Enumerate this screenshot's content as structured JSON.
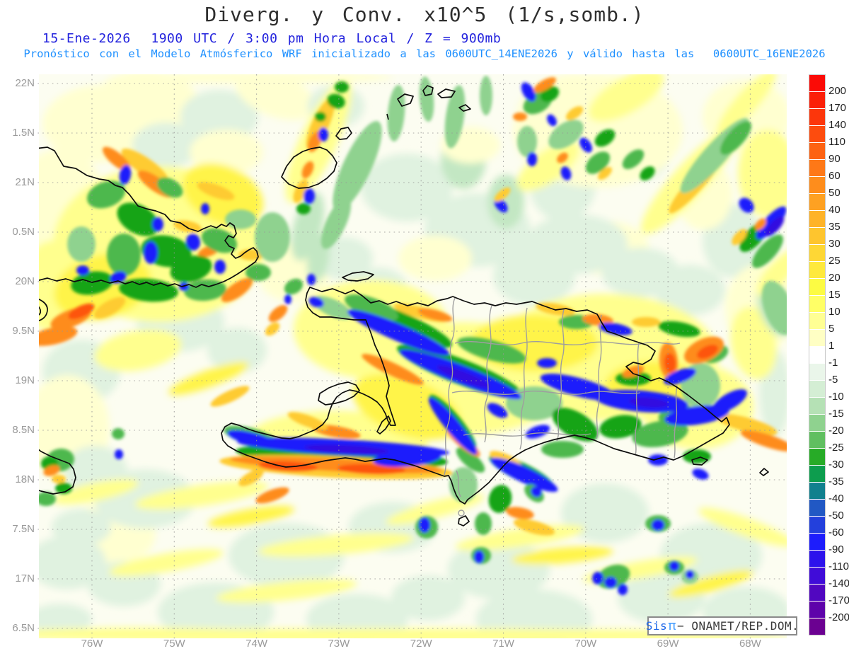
{
  "header": {
    "title": "Diverg. y Conv. x10^5 (1/s,somb.)",
    "datetime_line": "15-Ene-2026  1900 UTC / 3:00 pm Hora Local / Z = 900mb",
    "model_line": "Pronóstico con el Modelo Atmósferico WRF inicializado a las 0600UTC_14ENE2026 y válido hasta las  0600UTC_16ENE2026"
  },
  "map": {
    "y_axis_labels": [
      "22N",
      "1.5N",
      "21N",
      "0.5N",
      "20N",
      "9.5N",
      "19N",
      "8.5N",
      "18N",
      "7.5N",
      "17N",
      "6.5N"
    ],
    "x_axis_labels": [
      "76W",
      "75W",
      "74W",
      "73W",
      "72W",
      "71W",
      "70W",
      "69W",
      "68W"
    ]
  },
  "colorbar": {
    "levels": [
      200,
      170,
      140,
      110,
      90,
      60,
      50,
      40,
      35,
      30,
      25,
      20,
      15,
      10,
      5,
      1,
      -1,
      -5,
      -10,
      -15,
      -20,
      -25,
      -30,
      -35,
      -40,
      -50,
      -60,
      -90,
      -110,
      -140,
      -170,
      -200
    ],
    "colors": [
      "#fb0b06",
      "#fb1f08",
      "#fc360b",
      "#fd4c0e",
      "#fd6212",
      "#fe7817",
      "#fe8d1c",
      "#fea122",
      "#feb328",
      "#fec52e",
      "#fed735",
      "#fee93c",
      "#fcfb43",
      "#ffff66",
      "#ffff94",
      "#ffffc4",
      "#ffffff",
      "#eaf6ea",
      "#d4eed4",
      "#b5e1b5",
      "#8fd28f",
      "#60bf60",
      "#27ab27",
      "#0d9d4e",
      "#11808e",
      "#2158c4",
      "#2340dc",
      "#1d1dfc",
      "#2d13ec",
      "#400cd8",
      "#5107c0",
      "#5e03aa",
      "#6b0191"
    ]
  },
  "watermark": {
    "prefix": "Sis",
    "pi": "π",
    "suffix": "− ONAMET/REP.DOM."
  },
  "colors": {
    "title_text": "#2e2e2e",
    "datetime_text": "#2222dd",
    "model_text": "#1e90ff",
    "axis_text": "#9a9a9a",
    "coastline": "#0d0d0d",
    "province_border": "#9e9e9e"
  }
}
